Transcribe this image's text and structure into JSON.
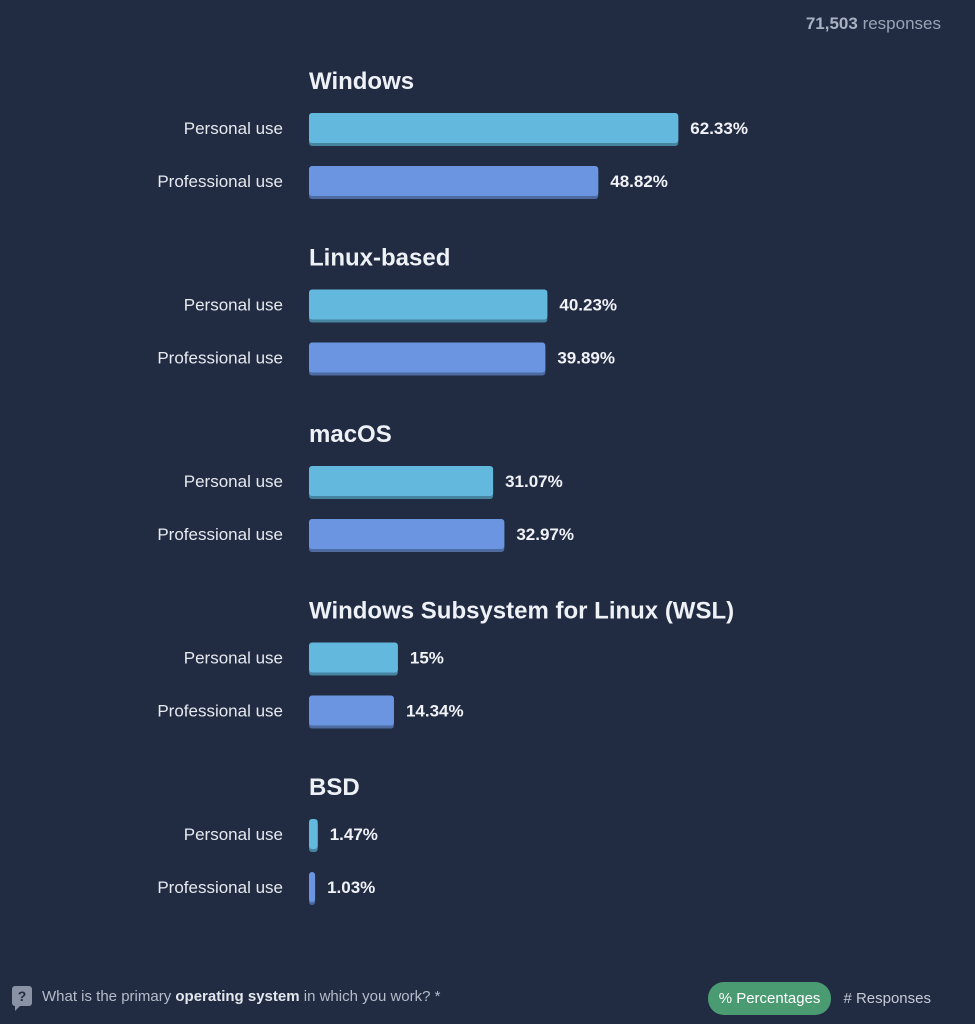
{
  "header": {
    "response_count": "71,503",
    "response_suffix": "responses"
  },
  "chart_data": {
    "type": "bar",
    "orientation": "horizontal",
    "unit": "%",
    "colors": {
      "Personal use": "#63b8de",
      "Professional use": "#6b95e0"
    },
    "groups": [
      {
        "title": "Windows",
        "bars": [
          {
            "label": "Personal use",
            "value": 62.33,
            "display": "62.33%"
          },
          {
            "label": "Professional use",
            "value": 48.82,
            "display": "48.82%"
          }
        ]
      },
      {
        "title": "Linux-based",
        "bars": [
          {
            "label": "Personal use",
            "value": 40.23,
            "display": "40.23%"
          },
          {
            "label": "Professional use",
            "value": 39.89,
            "display": "39.89%"
          }
        ]
      },
      {
        "title": "macOS",
        "bars": [
          {
            "label": "Personal use",
            "value": 31.07,
            "display": "31.07%"
          },
          {
            "label": "Professional use",
            "value": 32.97,
            "display": "32.97%"
          }
        ]
      },
      {
        "title": "Windows Subsystem for Linux (WSL)",
        "bars": [
          {
            "label": "Personal use",
            "value": 15,
            "display": "15%"
          },
          {
            "label": "Professional use",
            "value": 14.34,
            "display": "14.34%"
          }
        ]
      },
      {
        "title": "BSD",
        "bars": [
          {
            "label": "Personal use",
            "value": 1.47,
            "display": "1.47%"
          },
          {
            "label": "Professional use",
            "value": 1.03,
            "display": "1.03%"
          }
        ]
      }
    ]
  },
  "footer": {
    "icon": "question-icon",
    "question_before": "What is the primary ",
    "question_bold": "operating system",
    "question_after": " in which you work? *"
  },
  "toggles": {
    "percentages": "% Percentages",
    "responses": "# Responses"
  }
}
